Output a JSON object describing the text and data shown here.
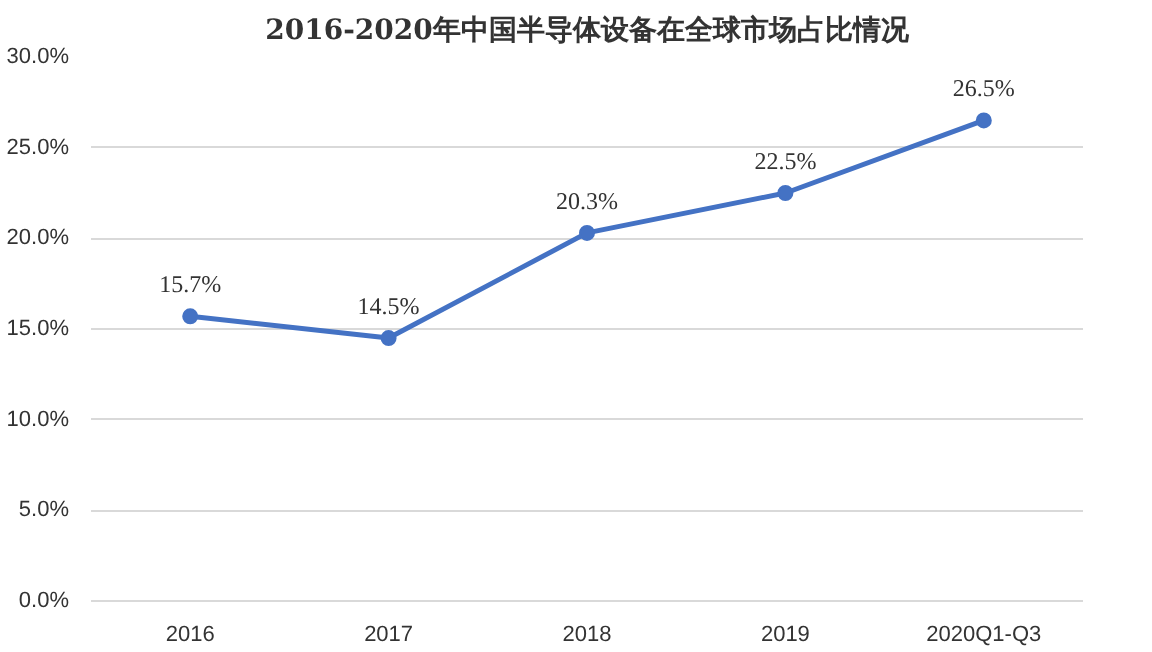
{
  "chart_data": {
    "type": "line",
    "title": "2016-2020年中国半导体设备在全球市场占比情况",
    "categories": [
      "2016",
      "2017",
      "2018",
      "2019",
      "2020Q1-Q3"
    ],
    "series": [
      {
        "color": "#4472c4",
        "values": [
          15.7,
          14.5,
          20.3,
          22.5,
          26.5
        ],
        "value_labels": [
          "15.7%",
          "14.5%",
          "20.3%",
          "22.5%",
          "26.5%"
        ]
      }
    ],
    "ylim": [
      0,
      30
    ],
    "yticks": [
      {
        "value": 0,
        "label": "0.0%"
      },
      {
        "value": 5,
        "label": "5.0%"
      },
      {
        "value": 10,
        "label": "10.0%"
      },
      {
        "value": 15,
        "label": "15.0%"
      },
      {
        "value": 20,
        "label": "20.0%"
      },
      {
        "value": 25,
        "label": "25.0%"
      },
      {
        "value": 30,
        "label": "30.0%"
      }
    ],
    "grid": "y",
    "marker": "circle",
    "line_style": "solid"
  }
}
